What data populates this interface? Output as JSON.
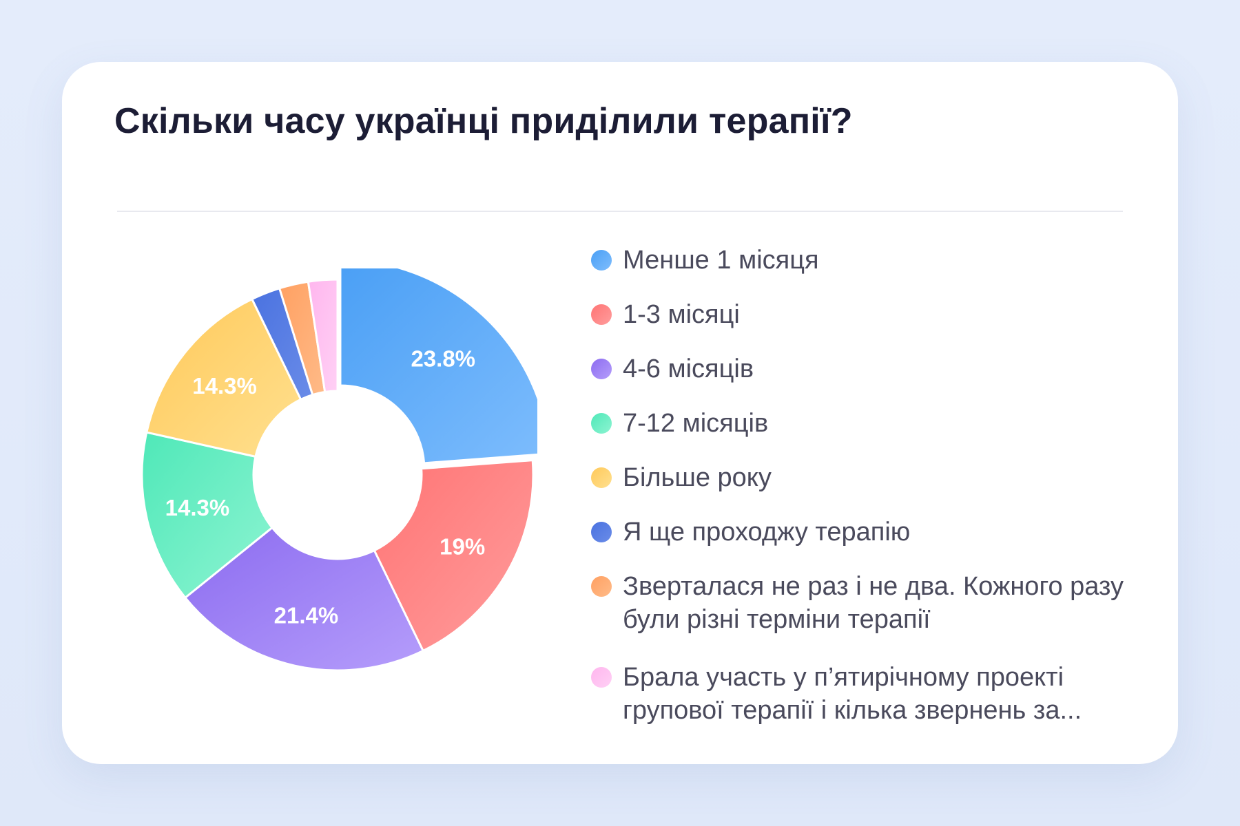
{
  "title": "Скільки часу українці приділили терапії?",
  "chart_data": {
    "type": "pie",
    "variant": "donut",
    "title": "Скільки часу українці приділили терапії?",
    "legend_position": "right",
    "slices": [
      {
        "label": "Менше 1 місяця",
        "value": 23.8,
        "display": "23.8%",
        "color_start": "#4a9ff5",
        "color_end": "#7ebdfd"
      },
      {
        "label": "1-3 місяці",
        "value": 19.0,
        "display": "19%",
        "color_start": "#ff7474",
        "color_end": "#ff9d9d"
      },
      {
        "label": "4-6 місяців",
        "value": 21.4,
        "display": "21.4%",
        "color_start": "#8c6cf0",
        "color_end": "#b59dfb"
      },
      {
        "label": "7-12 місяців",
        "value": 14.3,
        "display": "14.3%",
        "color_start": "#4fe8b8",
        "color_end": "#8ef4d2"
      },
      {
        "label": "Більше року",
        "value": 14.3,
        "display": "14.3%",
        "color_start": "#ffc95a",
        "color_end": "#ffe08f"
      },
      {
        "label": "Я ще проходжу терапію",
        "value": 2.4,
        "display": "",
        "color_start": "#4a72e0",
        "color_end": "#6a8ce8"
      },
      {
        "label": "Зверталася не раз і не два. Кожного разу були різні терміни терапії",
        "value": 2.4,
        "display": "",
        "color_start": "#ffa062",
        "color_end": "#ffbb88"
      },
      {
        "label": "Брала участь у п’ятирічному проекті групової терапії і кілька звернень за...",
        "value": 2.4,
        "display": "",
        "color_start": "#ffb6ee",
        "color_end": "#ffd0f5"
      }
    ]
  }
}
